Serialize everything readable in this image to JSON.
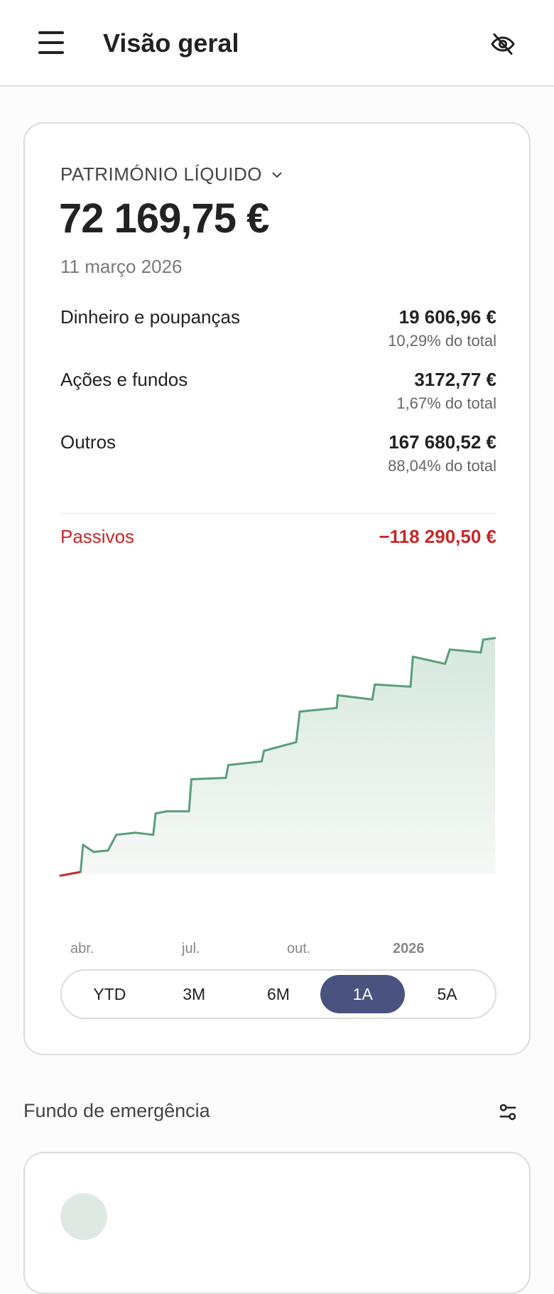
{
  "header": {
    "title": "Visão geral",
    "menu_icon": "menu-icon",
    "privacy_icon": "eye-off-icon"
  },
  "net_worth": {
    "label": "PATRIMÓNIO LÍQUIDO",
    "value": "72 169,75 €",
    "date": "11 março 2026",
    "rows": [
      {
        "name": "Dinheiro e poupanças",
        "value": "19 606,96 €",
        "pct": "10,29% do total"
      },
      {
        "name": "Ações e fundos",
        "value": "3172,77 €",
        "pct": "1,67% do total"
      },
      {
        "name": "Outros",
        "value": "167 680,52 €",
        "pct": "88,04% do total"
      }
    ],
    "liabilities": {
      "name": "Passivos",
      "value": "−118 290,50 €"
    },
    "ranges": [
      "YTD",
      "3M",
      "6M",
      "1A",
      "5A"
    ],
    "selected_range": "1A"
  },
  "colors": {
    "line": "#5a9e7b",
    "negative": "#c62828",
    "accent": "#4a5280"
  },
  "chart_data": {
    "type": "area",
    "grid": false,
    "x_ticks": [
      "abr.",
      "jul.",
      "out.",
      "2026"
    ],
    "x": [
      "2025-03-11",
      "2025-03-28",
      "2025-03-30",
      "2025-04-08",
      "2025-04-20",
      "2025-04-27",
      "2025-05-13",
      "2025-05-28",
      "2025-05-30",
      "2025-06-08",
      "2025-06-27",
      "2025-06-29",
      "2025-07-28",
      "2025-07-30",
      "2025-08-27",
      "2025-08-29",
      "2025-09-25",
      "2025-09-28",
      "2025-10-29",
      "2025-10-30",
      "2025-11-28",
      "2025-11-30",
      "2025-12-30",
      "2026-01-01",
      "2026-01-28",
      "2026-02-01",
      "2026-02-27",
      "2026-03-01",
      "2026-03-11"
    ],
    "values": [
      -500,
      650,
      8940,
      6760,
      7200,
      12000,
      12650,
      12000,
      18530,
      19180,
      19180,
      29000,
      29430,
      33350,
      34440,
      37710,
      40330,
      49700,
      50800,
      54700,
      53400,
      58000,
      57300,
      66500,
      64300,
      68700,
      67800,
      71700,
      72170
    ]
  },
  "emergency": {
    "title": "Fundo de emergência",
    "settings_icon": "sliders-icon"
  }
}
